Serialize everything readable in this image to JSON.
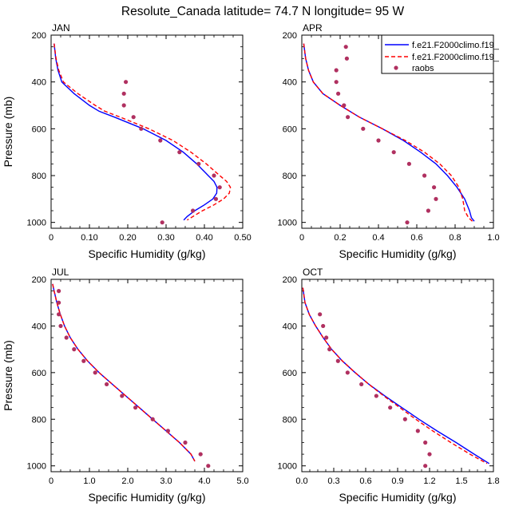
{
  "title": "Resolute_Canada  latitude= 74.7 N longitude= 95 W",
  "legend": {
    "entries": [
      {
        "label": "f.e21.F2000climo.f19_",
        "style": "solid",
        "color": "#0000ff"
      },
      {
        "label": "f.e21.F2000climo.f19_",
        "style": "dashed",
        "color": "#ff0000"
      },
      {
        "label": "raobs",
        "style": "marker",
        "color": "#b03060"
      }
    ],
    "placement": "top-right of APR panel"
  },
  "chart_data": [
    {
      "type": "line",
      "panel_label": "JAN",
      "xlabel": "Specific Humidity (g/kg)",
      "ylabel": "Pressure (mb)",
      "xlim": [
        0,
        0.5
      ],
      "ylim": [
        200,
        1025
      ],
      "y_inverted": true,
      "xticks": [
        "0",
        "0.10",
        "0.20",
        "0.30",
        "0.40",
        "0.50"
      ],
      "yticks": [
        "200",
        "400",
        "600",
        "800",
        "1000"
      ],
      "series": [
        {
          "name": "f.e21.F2000climo.f19_",
          "color": "#0000ff",
          "style": "solid",
          "p": [
            236,
            300,
            350,
            400,
            450,
            500,
            525,
            550,
            600,
            650,
            700,
            750,
            800,
            825,
            850,
            875,
            900,
            925,
            950,
            975,
            990
          ],
          "q": [
            0.008,
            0.012,
            0.018,
            0.028,
            0.06,
            0.1,
            0.125,
            0.165,
            0.24,
            0.3,
            0.345,
            0.38,
            0.41,
            0.425,
            0.433,
            0.432,
            0.422,
            0.4,
            0.375,
            0.355,
            0.346
          ]
        },
        {
          "name": "f.e21.F2000climo.f19_",
          "color": "#ff0000",
          "style": "dashed",
          "p": [
            236,
            300,
            350,
            400,
            450,
            500,
            525,
            550,
            600,
            650,
            700,
            750,
            800,
            825,
            850,
            875,
            900,
            925,
            950,
            975,
            990
          ],
          "q": [
            0.008,
            0.013,
            0.02,
            0.032,
            0.07,
            0.115,
            0.14,
            0.18,
            0.255,
            0.318,
            0.365,
            0.405,
            0.44,
            0.458,
            0.468,
            0.465,
            0.45,
            0.425,
            0.395,
            0.37,
            0.355
          ]
        },
        {
          "name": "raobs",
          "color": "#b03060",
          "style": "marker",
          "p": [
            400,
            450,
            500,
            550,
            600,
            650,
            700,
            750,
            800,
            850,
            900,
            950,
            1000
          ],
          "q": [
            0.195,
            0.19,
            0.19,
            0.215,
            0.235,
            0.285,
            0.335,
            0.385,
            0.425,
            0.44,
            0.43,
            0.37,
            0.29
          ]
        }
      ]
    },
    {
      "type": "line",
      "panel_label": "APR",
      "xlabel": "Specific Humidity (g/kg)",
      "ylabel": "",
      "xlim": [
        0,
        1.0
      ],
      "ylim": [
        200,
        1025
      ],
      "y_inverted": true,
      "xticks": [
        "0",
        "0.2",
        "0.4",
        "0.6",
        "0.8",
        "1.0"
      ],
      "yticks": [
        "200",
        "400",
        "600",
        "800",
        "1000"
      ],
      "series": [
        {
          "name": "f.e21.F2000climo.f19_",
          "color": "#0000ff",
          "style": "solid",
          "p": [
            236,
            300,
            350,
            400,
            450,
            500,
            550,
            600,
            650,
            700,
            750,
            800,
            850,
            900,
            950,
            980,
            995
          ],
          "q": [
            0.01,
            0.02,
            0.035,
            0.06,
            0.11,
            0.2,
            0.3,
            0.42,
            0.53,
            0.62,
            0.7,
            0.76,
            0.81,
            0.85,
            0.875,
            0.885,
            0.9
          ]
        },
        {
          "name": "f.e21.F2000climo.f19_",
          "color": "#ff0000",
          "style": "dashed",
          "p": [
            236,
            300,
            350,
            400,
            450,
            500,
            550,
            600,
            650,
            700,
            750,
            800,
            850,
            900,
            950,
            980,
            995
          ],
          "q": [
            0.01,
            0.02,
            0.035,
            0.06,
            0.11,
            0.2,
            0.3,
            0.42,
            0.54,
            0.64,
            0.72,
            0.78,
            0.82,
            0.84,
            0.85,
            0.87,
            0.89
          ]
        },
        {
          "name": "raobs",
          "color": "#b03060",
          "style": "marker",
          "p": [
            250,
            300,
            350,
            400,
            450,
            500,
            550,
            600,
            650,
            700,
            750,
            800,
            850,
            900,
            950,
            1000
          ],
          "q": [
            0.23,
            0.235,
            0.18,
            0.18,
            0.19,
            0.22,
            0.24,
            0.32,
            0.4,
            0.48,
            0.56,
            0.64,
            0.69,
            0.7,
            0.66,
            0.55
          ]
        }
      ]
    },
    {
      "type": "line",
      "panel_label": "JUL",
      "xlabel": "Specific Humidity (g/kg)",
      "ylabel": "Pressure (mb)",
      "xlim": [
        0,
        5.0
      ],
      "ylim": [
        200,
        1025
      ],
      "y_inverted": true,
      "xticks": [
        "0",
        "1.0",
        "2.0",
        "3.0",
        "4.0",
        "5.0"
      ],
      "yticks": [
        "200",
        "400",
        "600",
        "800",
        "1000"
      ],
      "series": [
        {
          "name": "f.e21.F2000climo.f19_",
          "color": "#0000ff",
          "style": "solid",
          "p": [
            220,
            250,
            300,
            350,
            400,
            450,
            500,
            550,
            600,
            650,
            700,
            750,
            800,
            850,
            900,
            950,
            980
          ],
          "q": [
            0.04,
            0.08,
            0.15,
            0.24,
            0.35,
            0.5,
            0.7,
            0.95,
            1.25,
            1.6,
            1.95,
            2.3,
            2.65,
            3.0,
            3.35,
            3.65,
            3.75
          ]
        },
        {
          "name": "f.e21.F2000climo.f19_",
          "color": "#ff0000",
          "style": "dashed",
          "p": [
            220,
            250,
            300,
            350,
            400,
            450,
            500,
            550,
            600,
            650,
            700,
            750,
            800,
            850,
            900,
            950,
            980
          ],
          "q": [
            0.04,
            0.08,
            0.15,
            0.24,
            0.35,
            0.5,
            0.7,
            0.95,
            1.25,
            1.6,
            1.95,
            2.3,
            2.65,
            3.0,
            3.35,
            3.65,
            3.75
          ]
        },
        {
          "name": "raobs",
          "color": "#b03060",
          "style": "marker",
          "p": [
            250,
            300,
            350,
            400,
            450,
            500,
            550,
            600,
            650,
            700,
            750,
            800,
            850,
            900,
            950,
            1000
          ],
          "q": [
            0.2,
            0.2,
            0.2,
            0.25,
            0.4,
            0.6,
            0.85,
            1.15,
            1.45,
            1.85,
            2.2,
            2.65,
            3.05,
            3.5,
            3.9,
            4.1
          ]
        }
      ]
    },
    {
      "type": "line",
      "panel_label": "OCT",
      "xlabel": "Specific Humidity (g/kg)",
      "ylabel": "",
      "xlim": [
        0,
        1.8
      ],
      "ylim": [
        200,
        1025
      ],
      "y_inverted": true,
      "xticks": [
        "0.0",
        "0.3",
        "0.6",
        "0.9",
        "1.2",
        "1.5",
        "1.8"
      ],
      "yticks": [
        "200",
        "400",
        "600",
        "800",
        "1000"
      ],
      "series": [
        {
          "name": "f.e21.F2000climo.f19_",
          "color": "#0000ff",
          "style": "solid",
          "p": [
            236,
            300,
            350,
            400,
            450,
            500,
            550,
            600,
            650,
            700,
            750,
            800,
            850,
            900,
            950,
            990
          ],
          "q": [
            0.01,
            0.03,
            0.07,
            0.13,
            0.2,
            0.28,
            0.38,
            0.5,
            0.63,
            0.78,
            0.94,
            1.1,
            1.27,
            1.45,
            1.62,
            1.76
          ]
        },
        {
          "name": "f.e21.F2000climo.f19_",
          "color": "#ff0000",
          "style": "dashed",
          "p": [
            236,
            300,
            350,
            400,
            450,
            500,
            550,
            600,
            650,
            700,
            750,
            800,
            850,
            900,
            950,
            990
          ],
          "q": [
            0.01,
            0.03,
            0.07,
            0.13,
            0.2,
            0.28,
            0.38,
            0.5,
            0.63,
            0.77,
            0.92,
            1.07,
            1.23,
            1.4,
            1.58,
            1.74
          ]
        },
        {
          "name": "raobs",
          "color": "#b03060",
          "style": "marker",
          "p": [
            350,
            400,
            450,
            500,
            550,
            600,
            650,
            700,
            750,
            800,
            850,
            900,
            950,
            1000
          ],
          "q": [
            0.17,
            0.2,
            0.23,
            0.26,
            0.34,
            0.43,
            0.56,
            0.7,
            0.83,
            0.97,
            1.09,
            1.16,
            1.2,
            1.16
          ]
        }
      ]
    }
  ]
}
